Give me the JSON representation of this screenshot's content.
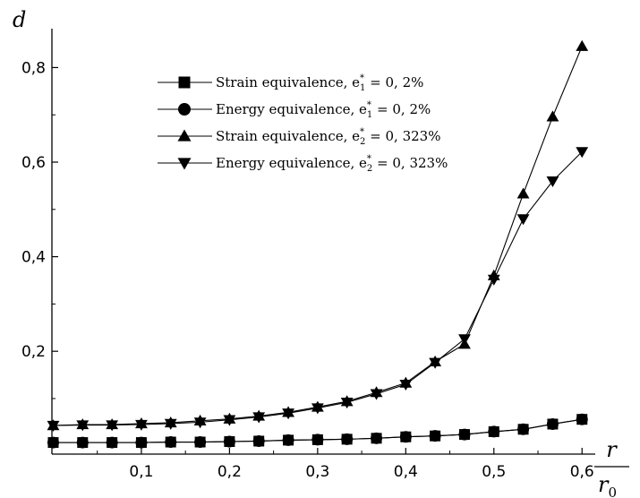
{
  "chart_data": {
    "type": "line",
    "x_ticks": [
      "0,1",
      "0,2",
      "0,3",
      "0,4",
      "0,5",
      "0,6"
    ],
    "x_tick_values": [
      0.1,
      0.2,
      0.3,
      0.4,
      0.5,
      0.6
    ],
    "y_ticks": [
      "0,2",
      "0,4",
      "0,6",
      "0,8"
    ],
    "y_tick_values": [
      0.2,
      0.4,
      0.6,
      0.8
    ],
    "xlim": [
      -0.0015,
      0.615
    ],
    "ylim": [
      -0.0175,
      0.905
    ],
    "ylabel": "d",
    "xlabel_num": "r",
    "xlabel_den": "r",
    "xlabel_den_sub": "0",
    "grid": false,
    "legend_position": "top-center",
    "x": [
      0.0,
      0.0333,
      0.0667,
      0.1,
      0.1333,
      0.1667,
      0.2,
      0.2333,
      0.2667,
      0.3,
      0.3333,
      0.3667,
      0.4,
      0.4333,
      0.4667,
      0.5,
      0.5333,
      0.5667,
      0.6
    ],
    "series": [
      {
        "name": "Strain equivalence, e",
        "sub": "1",
        "eq": " = 0, 2%",
        "marker": "square",
        "values": [
          0.007,
          0.007,
          0.007,
          0.007,
          0.008,
          0.008,
          0.009,
          0.01,
          0.012,
          0.013,
          0.014,
          0.016,
          0.019,
          0.021,
          0.024,
          0.03,
          0.035,
          0.046,
          0.056
        ]
      },
      {
        "name": "Energy equivalence, e",
        "sub": "1",
        "eq": " = 0, 2%",
        "marker": "circle",
        "values": [
          0.007,
          0.007,
          0.007,
          0.007,
          0.008,
          0.008,
          0.009,
          0.01,
          0.012,
          0.013,
          0.014,
          0.016,
          0.019,
          0.021,
          0.024,
          0.03,
          0.035,
          0.046,
          0.056
        ]
      },
      {
        "name": "Strain equivalence, e",
        "sub": "2",
        "eq": " = 0, 323%",
        "marker": "triangle-up",
        "values": [
          0.043,
          0.045,
          0.045,
          0.047,
          0.049,
          0.053,
          0.057,
          0.063,
          0.071,
          0.082,
          0.094,
          0.113,
          0.133,
          0.178,
          0.215,
          0.36,
          0.533,
          0.696,
          0.845
        ]
      },
      {
        "name": "Energy equivalence, e",
        "sub": "2",
        "eq": " = 0, 323%",
        "marker": "triangle-down",
        "values": [
          0.043,
          0.044,
          0.044,
          0.045,
          0.047,
          0.05,
          0.055,
          0.061,
          0.069,
          0.08,
          0.092,
          0.11,
          0.13,
          0.176,
          0.226,
          0.352,
          0.48,
          0.56,
          0.622
        ]
      }
    ]
  }
}
